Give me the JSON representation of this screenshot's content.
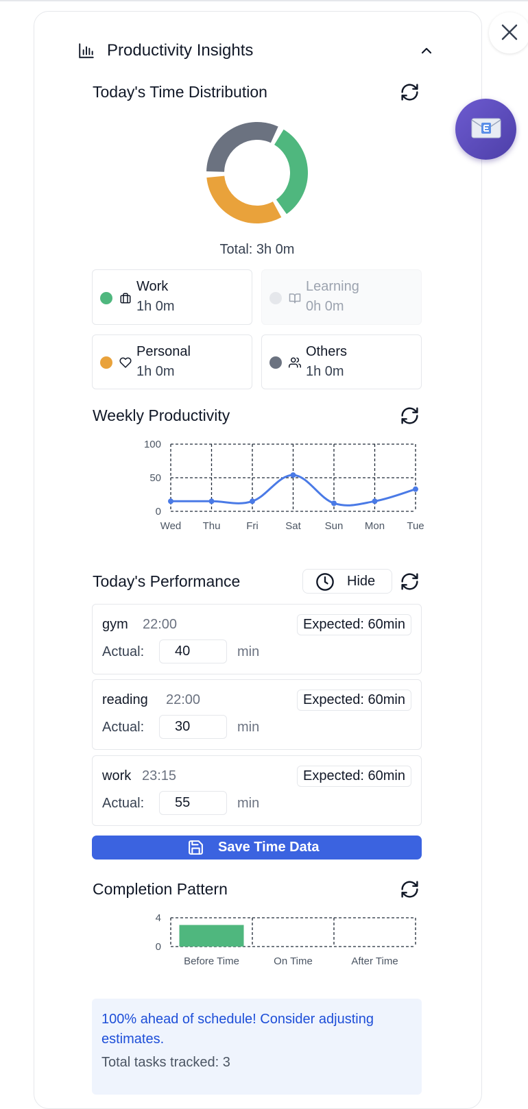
{
  "header": {
    "title": "Productivity Insights",
    "icon": "bar-chart-icon",
    "collapse_icon": "chevron-up-icon"
  },
  "distribution": {
    "title": "Today's Time Distribution",
    "total_label": "Total: 3h 0m",
    "chart_data": {
      "type": "pie",
      "categories": [
        "Work",
        "Learning",
        "Personal",
        "Others"
      ],
      "values": [
        60,
        0,
        60,
        60
      ],
      "colors": [
        "#4fb77e",
        "#e5e7eb",
        "#e9a23b",
        "#6b7280"
      ]
    },
    "categories": [
      {
        "name": "Work",
        "value": "1h 0m",
        "icon": "briefcase-icon",
        "color": "#4fb77e"
      },
      {
        "name": "Learning",
        "value": "0h 0m",
        "icon": "book-icon",
        "color": "#e5e7eb"
      },
      {
        "name": "Personal",
        "value": "1h 0m",
        "icon": "heart-icon",
        "color": "#e9a23b"
      },
      {
        "name": "Others",
        "value": "1h 0m",
        "icon": "users-icon",
        "color": "#6b7280"
      }
    ]
  },
  "weekly": {
    "title": "Weekly Productivity",
    "chart_data": {
      "type": "line",
      "x": [
        "Wed",
        "Thu",
        "Fri",
        "Sat",
        "Sun",
        "Mon",
        "Tue"
      ],
      "y_ticks": [
        "100",
        "50",
        "0"
      ],
      "ylim": [
        0,
        100
      ],
      "series": [
        {
          "values": [
            15,
            15,
            15,
            54,
            12,
            15,
            33
          ],
          "color": "#4a7ae6"
        }
      ],
      "grid": true
    }
  },
  "performance": {
    "title": "Today's Performance",
    "hide_label": "Hide",
    "tasks": [
      {
        "name": "gym",
        "time": "22:00",
        "expected": "Expected: 60min",
        "actual_label": "Actual:",
        "actual": "40",
        "unit": "min"
      },
      {
        "name": "reading",
        "time": "22:00",
        "expected": "Expected: 60min",
        "actual_label": "Actual:",
        "actual": "30",
        "unit": "min"
      },
      {
        "name": "work",
        "time": "23:15",
        "expected": "Expected: 60min",
        "actual_label": "Actual:",
        "actual": "55",
        "unit": "min"
      }
    ],
    "save_label": "Save Time Data"
  },
  "completion": {
    "title": "Completion Pattern",
    "chart_data": {
      "type": "bar",
      "categories": [
        "Before Time",
        "On Time",
        "After Time"
      ],
      "values": [
        3,
        0,
        0
      ],
      "y_ticks": [
        "4",
        "0"
      ],
      "ylim": [
        0,
        4
      ],
      "color": "#4fb77e",
      "grid": true
    }
  },
  "note": {
    "message": "100% ahead of schedule! Consider adjusting estimates.",
    "total": "Total tasks tracked: 3"
  },
  "accent": "#3b63e0"
}
